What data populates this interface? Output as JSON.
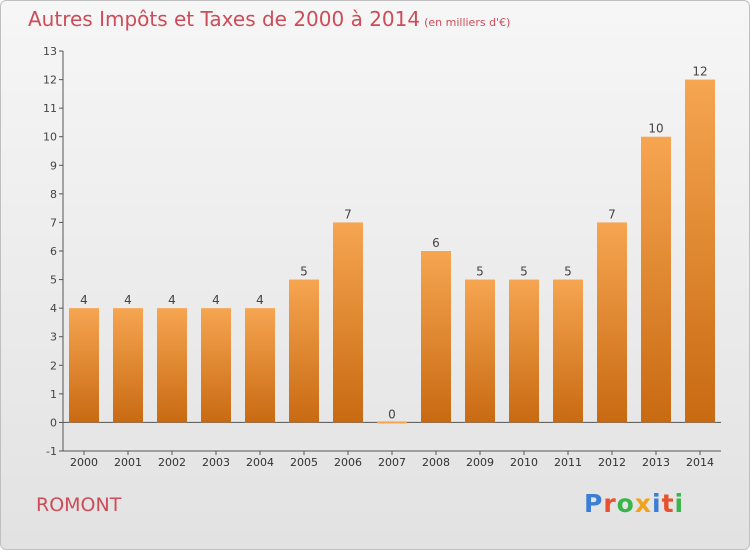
{
  "header": {
    "title": "Autres Impôts et Taxes de 2000 à 2014",
    "subtitle": "(en milliers d'€)"
  },
  "footer": {
    "town": "ROMONT",
    "logo": "Proxiti",
    "logo_colors": [
      "#3a7fd5",
      "#e8502e",
      "#3ab54a",
      "#f1a21c",
      "#3a7fd5",
      "#e8502e",
      "#3ab54a"
    ]
  },
  "chart_data": {
    "type": "bar",
    "categories": [
      "2000",
      "2001",
      "2002",
      "2003",
      "2004",
      "2005",
      "2006",
      "2007",
      "2008",
      "2009",
      "2010",
      "2011",
      "2012",
      "2013",
      "2014"
    ],
    "values": [
      4,
      4,
      4,
      4,
      4,
      5,
      7,
      0,
      6,
      5,
      5,
      5,
      7,
      10,
      12
    ],
    "data_labels": [
      "4",
      "4",
      "4",
      "4",
      "4",
      "5",
      "7",
      "0",
      "6",
      "5",
      "5",
      "5",
      "7",
      "10",
      "12"
    ],
    "yticks": [
      "-1",
      "0",
      "1",
      "2",
      "3",
      "4",
      "5",
      "6",
      "7",
      "8",
      "9",
      "10",
      "11",
      "12",
      "13"
    ],
    "ylim": [
      -1,
      13
    ],
    "grid": false,
    "bar_color_top": "#f6a551",
    "bar_color_bottom": "#c86a12"
  }
}
